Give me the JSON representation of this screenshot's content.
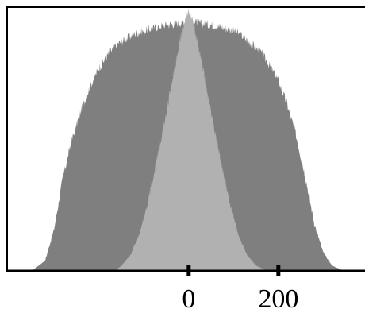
{
  "chart_data": {
    "type": "area",
    "title": "",
    "xlabel": "",
    "ylabel": "",
    "xlim": [
      -405,
      395
    ],
    "ylim": [
      0,
      1
    ],
    "grid": false,
    "legend": "none",
    "x_ticks": [
      {
        "value": 0,
        "label": "0"
      },
      {
        "value": 200,
        "label": "200"
      }
    ],
    "series": [
      {
        "color": "#7f7f7f",
        "x": [
          -350,
          -320,
          -300,
          -280,
          -260,
          -240,
          -220,
          -200,
          -180,
          -160,
          -140,
          -120,
          -100,
          -80,
          -60,
          -40,
          -20,
          0,
          20,
          40,
          60,
          80,
          100,
          120,
          140,
          160,
          180,
          200,
          220,
          240,
          260,
          280,
          300,
          320,
          340,
          345
        ],
        "y": [
          0.0,
          0.04,
          0.16,
          0.36,
          0.5,
          0.61,
          0.7,
          0.77,
          0.82,
          0.86,
          0.88,
          0.9,
          0.91,
          0.92,
          0.93,
          0.935,
          0.94,
          0.95,
          0.94,
          0.935,
          0.93,
          0.92,
          0.91,
          0.89,
          0.86,
          0.83,
          0.78,
          0.72,
          0.63,
          0.51,
          0.36,
          0.18,
          0.07,
          0.02,
          0.005,
          0.0
        ]
      },
      {
        "color": "#b1b1b1",
        "x": [
          -165,
          -150,
          -130,
          -110,
          -90,
          -70,
          -50,
          -35,
          -20,
          -10,
          0,
          10,
          20,
          35,
          50,
          70,
          90,
          110,
          130,
          150,
          170,
          185
        ],
        "y": [
          0.0,
          0.02,
          0.06,
          0.14,
          0.27,
          0.43,
          0.6,
          0.74,
          0.87,
          0.94,
          0.99,
          0.94,
          0.87,
          0.74,
          0.6,
          0.43,
          0.27,
          0.14,
          0.06,
          0.02,
          0.005,
          0.0
        ]
      }
    ]
  }
}
